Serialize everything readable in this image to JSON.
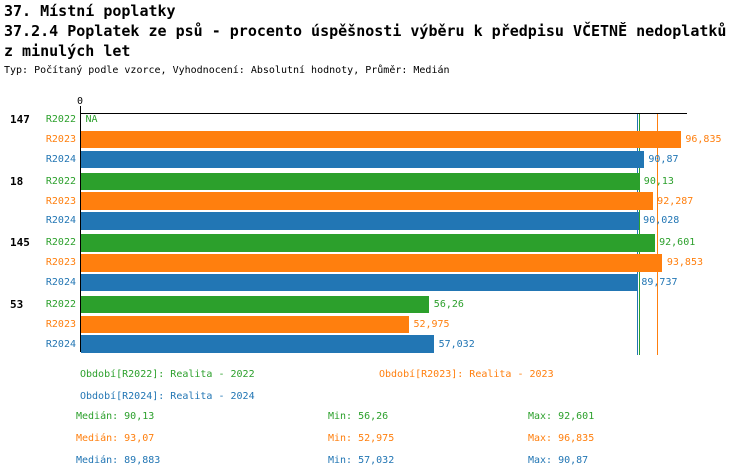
{
  "header": {
    "title_line1": "37. Místní poplatky",
    "title_line2": "37.2.4 Poplatek ze psů - procento úspěšnosti výběru k předpisu VČETNĚ nedoplatků",
    "title_line3": "z minulých let",
    "meta": "Typ: Počítaný podle vzorce, Vyhodnocení: Absolutní hodnoty, Průměr: Medián"
  },
  "colors": {
    "green": "#2ca02c",
    "orange": "#ff7f0e",
    "blue": "#2276b4",
    "axis": "#000000"
  },
  "chart_data": {
    "type": "bar",
    "orientation": "horizontal",
    "x_origin_label": "0",
    "xlim": [
      0,
      97.8
    ],
    "series_labels": [
      "R2022",
      "R2023",
      "R2024"
    ],
    "groups": [
      {
        "label": "147",
        "bars": [
          {
            "series": "R2022",
            "value": null,
            "display": "NA"
          },
          {
            "series": "R2023",
            "value": 96.835,
            "display": "96,835"
          },
          {
            "series": "R2024",
            "value": 90.87,
            "display": "90,87"
          }
        ]
      },
      {
        "label": "18",
        "bars": [
          {
            "series": "R2022",
            "value": 90.13,
            "display": "90,13"
          },
          {
            "series": "R2023",
            "value": 92.287,
            "display": "92,287"
          },
          {
            "series": "R2024",
            "value": 90.028,
            "display": "90,028"
          }
        ]
      },
      {
        "label": "145",
        "bars": [
          {
            "series": "R2022",
            "value": 92.601,
            "display": "92,601"
          },
          {
            "series": "R2023",
            "value": 93.853,
            "display": "93,853"
          },
          {
            "series": "R2024",
            "value": 89.737,
            "display": "89,737"
          }
        ]
      },
      {
        "label": "53",
        "bars": [
          {
            "series": "R2022",
            "value": 56.26,
            "display": "56,26"
          },
          {
            "series": "R2023",
            "value": 52.975,
            "display": "52,975"
          },
          {
            "series": "R2024",
            "value": 57.032,
            "display": "57,032"
          }
        ]
      }
    ],
    "median_lines": [
      {
        "series": "R2024",
        "value": 89.883,
        "color": "blue"
      },
      {
        "series": "R2022",
        "value": 90.13,
        "color": "green"
      },
      {
        "series": "R2023",
        "value": 93.07,
        "color": "orange"
      }
    ],
    "statistics": [
      {
        "series": "R2022",
        "median": 90.13,
        "min": 56.26,
        "max": 92.601
      },
      {
        "series": "R2023",
        "median": 93.07,
        "min": 52.975,
        "max": 96.835
      },
      {
        "series": "R2024",
        "median": 89.883,
        "min": 57.032,
        "max": 90.87
      }
    ]
  },
  "legend": [
    {
      "label": "Období[R2022]: Realita - 2022",
      "color": "green"
    },
    {
      "label": "Období[R2023]: Realita - 2023",
      "color": "orange"
    },
    {
      "label": "Období[R2024]: Realita - 2024",
      "color": "blue"
    }
  ],
  "stats": [
    {
      "color": "green",
      "median_label": "Medián: 90,13",
      "min_label": "Min: 56,26",
      "max_label": "Max: 92,601"
    },
    {
      "color": "orange",
      "median_label": "Medián: 93,07",
      "min_label": "Min: 52,975",
      "max_label": "Max: 96,835"
    },
    {
      "color": "blue",
      "median_label": "Medián: 89,883",
      "min_label": "Min: 57,032",
      "max_label": "Max: 90,87"
    }
  ]
}
